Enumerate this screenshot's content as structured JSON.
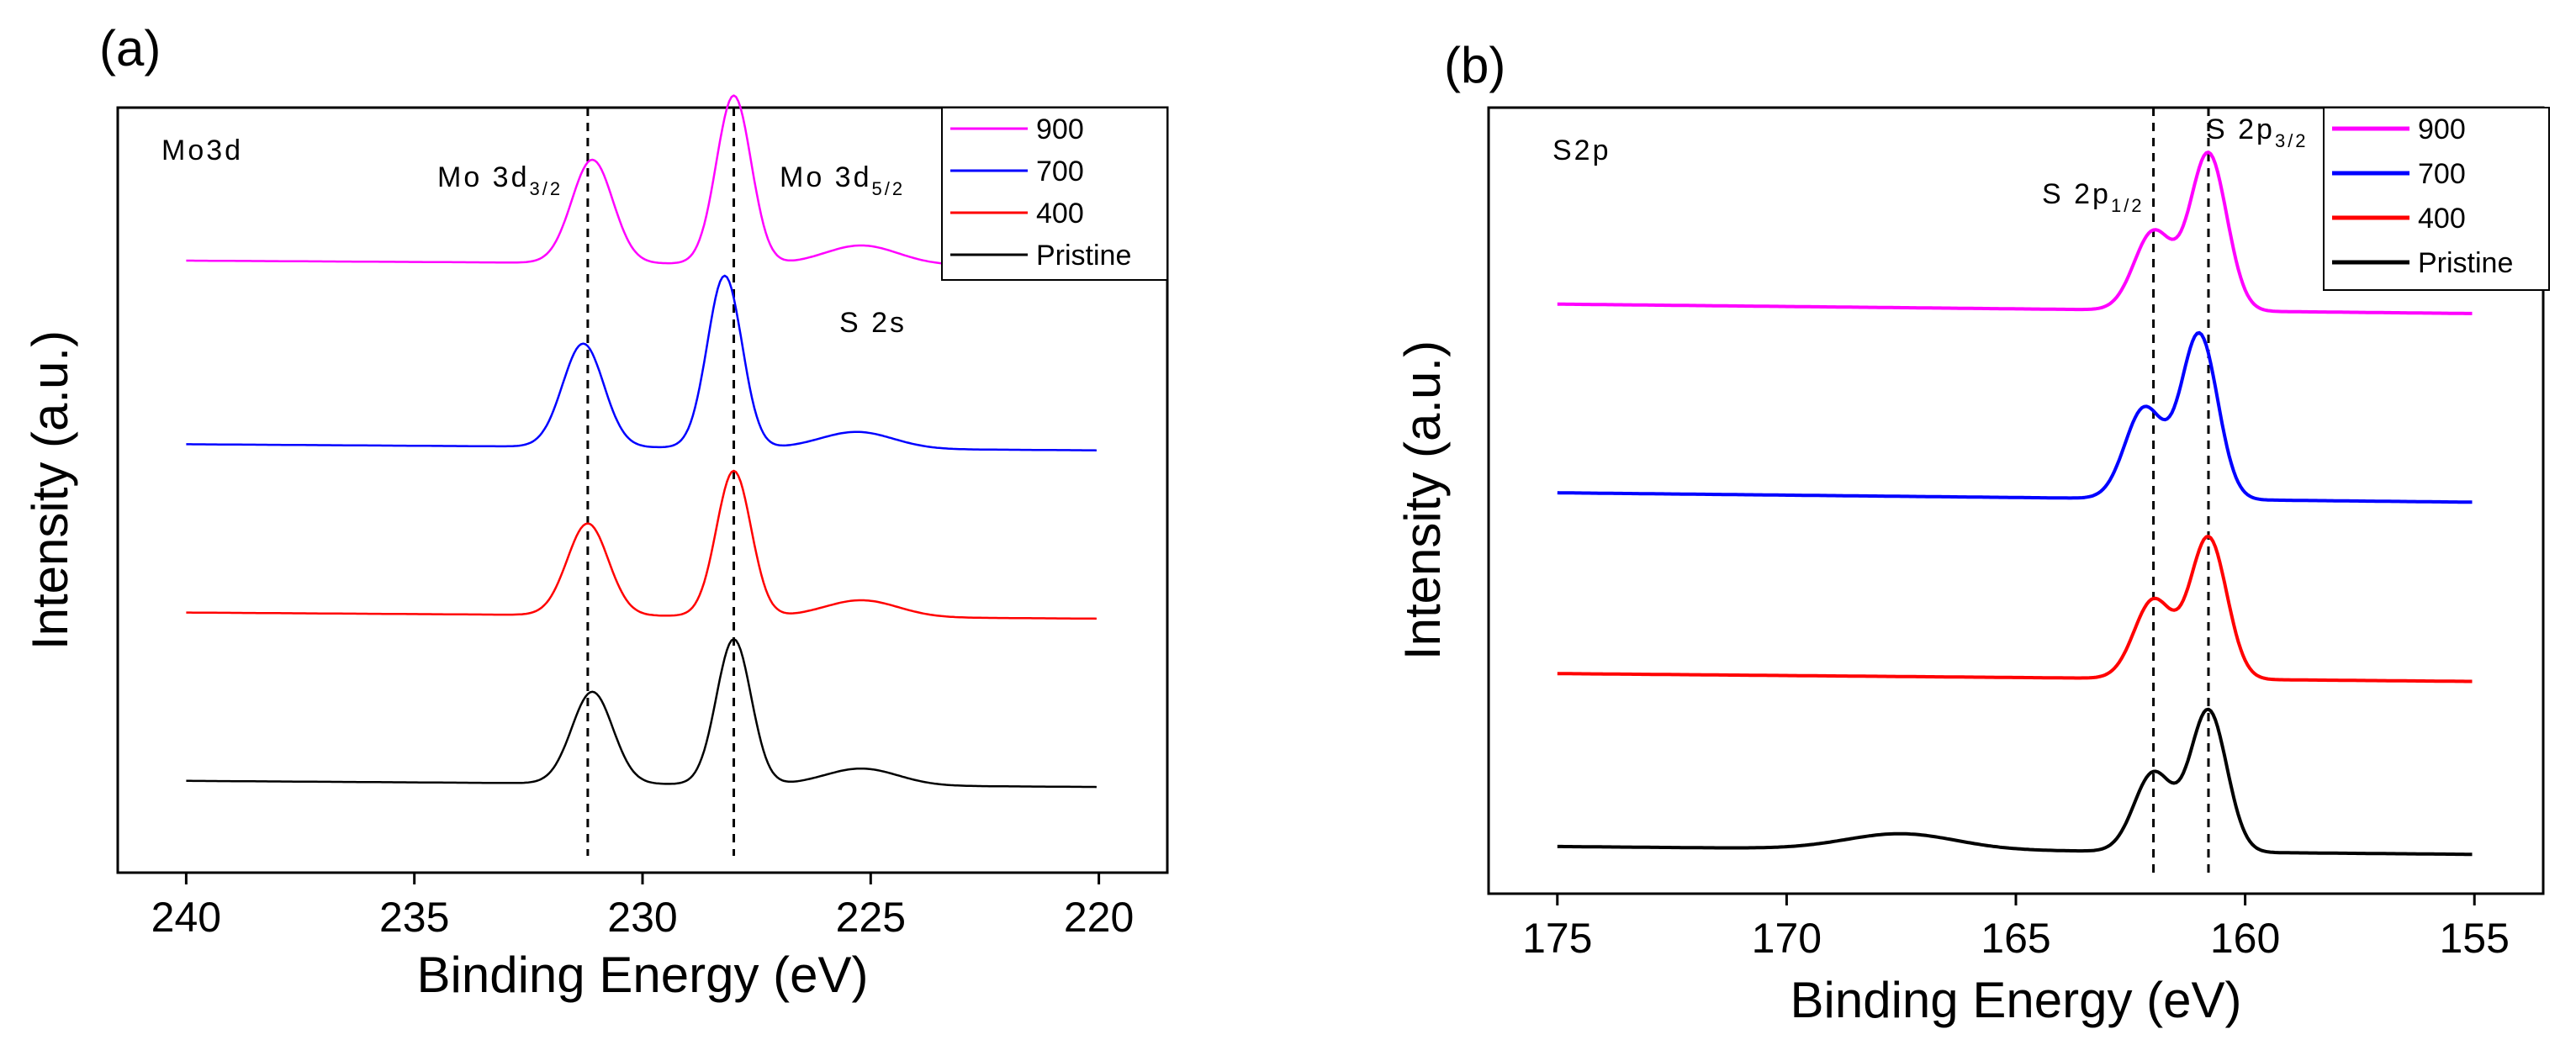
{
  "chart_data": [
    {
      "type": "line",
      "panel_label": "(a)",
      "title": "Mo3d",
      "xlabel": "Binding Energy (eV)",
      "ylabel": "Intensity (a.u.)",
      "xlim": [
        241.5,
        218.5
      ],
      "x_ticks": [
        240,
        235,
        230,
        225,
        220
      ],
      "x_tick_labels": [
        "240",
        "235",
        "230",
        "225",
        "220"
      ],
      "y_ticks_shown": false,
      "legend_position": "top-right",
      "dashed_lines": [
        231.2,
        228.0
      ],
      "annotations": [
        {
          "text": "Mo 3d",
          "sub": "3/2"
        },
        {
          "text": "Mo 3d",
          "sub": "5/2"
        },
        {
          "text": "S 2s",
          "sub": ""
        }
      ],
      "series": [
        {
          "name": "900",
          "color": "#ff00ff",
          "baseline": 0.8,
          "slope": 0.007,
          "peaks": [
            [
              231.1,
              0.135,
              0.45
            ],
            [
              228.0,
              0.22,
              0.38
            ],
            [
              225.2,
              0.025,
              0.8
            ]
          ]
        },
        {
          "name": "700",
          "color": "#0000ff",
          "baseline": 0.56,
          "slope": 0.008,
          "peaks": [
            [
              231.3,
              0.135,
              0.45
            ],
            [
              228.2,
              0.225,
              0.38
            ],
            [
              225.3,
              0.022,
              0.8
            ]
          ]
        },
        {
          "name": "400",
          "color": "#ff0000",
          "baseline": 0.34,
          "slope": 0.008,
          "peaks": [
            [
              231.2,
              0.12,
              0.45
            ],
            [
              228.0,
              0.19,
              0.38
            ],
            [
              225.2,
              0.022,
              0.8
            ]
          ]
        },
        {
          "name": "Pristine",
          "color": "#000000",
          "baseline": 0.12,
          "slope": 0.008,
          "peaks": [
            [
              231.1,
              0.12,
              0.45
            ],
            [
              228.0,
              0.19,
              0.38
            ],
            [
              225.2,
              0.022,
              0.8
            ]
          ]
        }
      ]
    },
    {
      "type": "line",
      "panel_label": "(b)",
      "title": "S2p",
      "xlabel": "Binding Energy (eV)",
      "ylabel": "Intensity (a.u.)",
      "xlim": [
        176.5,
        153.5
      ],
      "x_ticks": [
        175,
        170,
        165,
        160,
        155
      ],
      "x_tick_labels": [
        "175",
        "170",
        "165",
        "160",
        "155"
      ],
      "y_ticks_shown": false,
      "legend_position": "top-right",
      "dashed_lines": [
        162.0,
        160.8
      ],
      "annotations": [
        {
          "text": "S 2p",
          "sub": "1/2"
        },
        {
          "text": "S 2p",
          "sub": "3/2"
        }
      ],
      "series": [
        {
          "name": "900",
          "color": "#ff00ff",
          "baseline": 0.75,
          "slope": 0.012,
          "peaks": [
            [
              162.0,
              0.1,
              0.42
            ],
            [
              160.8,
              0.2,
              0.4
            ]
          ]
        },
        {
          "name": "700",
          "color": "#0000ff",
          "baseline": 0.51,
          "slope": 0.012,
          "peaks": [
            [
              162.2,
              0.115,
              0.42
            ],
            [
              161.0,
              0.21,
              0.4
            ]
          ]
        },
        {
          "name": "400",
          "color": "#ff0000",
          "baseline": 0.28,
          "slope": 0.01,
          "peaks": [
            [
              162.0,
              0.1,
              0.42
            ],
            [
              160.8,
              0.18,
              0.4
            ]
          ]
        },
        {
          "name": "Pristine",
          "color": "#000000",
          "baseline": 0.06,
          "slope": 0.01,
          "peaks": [
            [
              162.0,
              0.1,
              0.42
            ],
            [
              160.8,
              0.18,
              0.4
            ],
            [
              167.5,
              0.02,
              1.2
            ]
          ]
        }
      ]
    }
  ]
}
